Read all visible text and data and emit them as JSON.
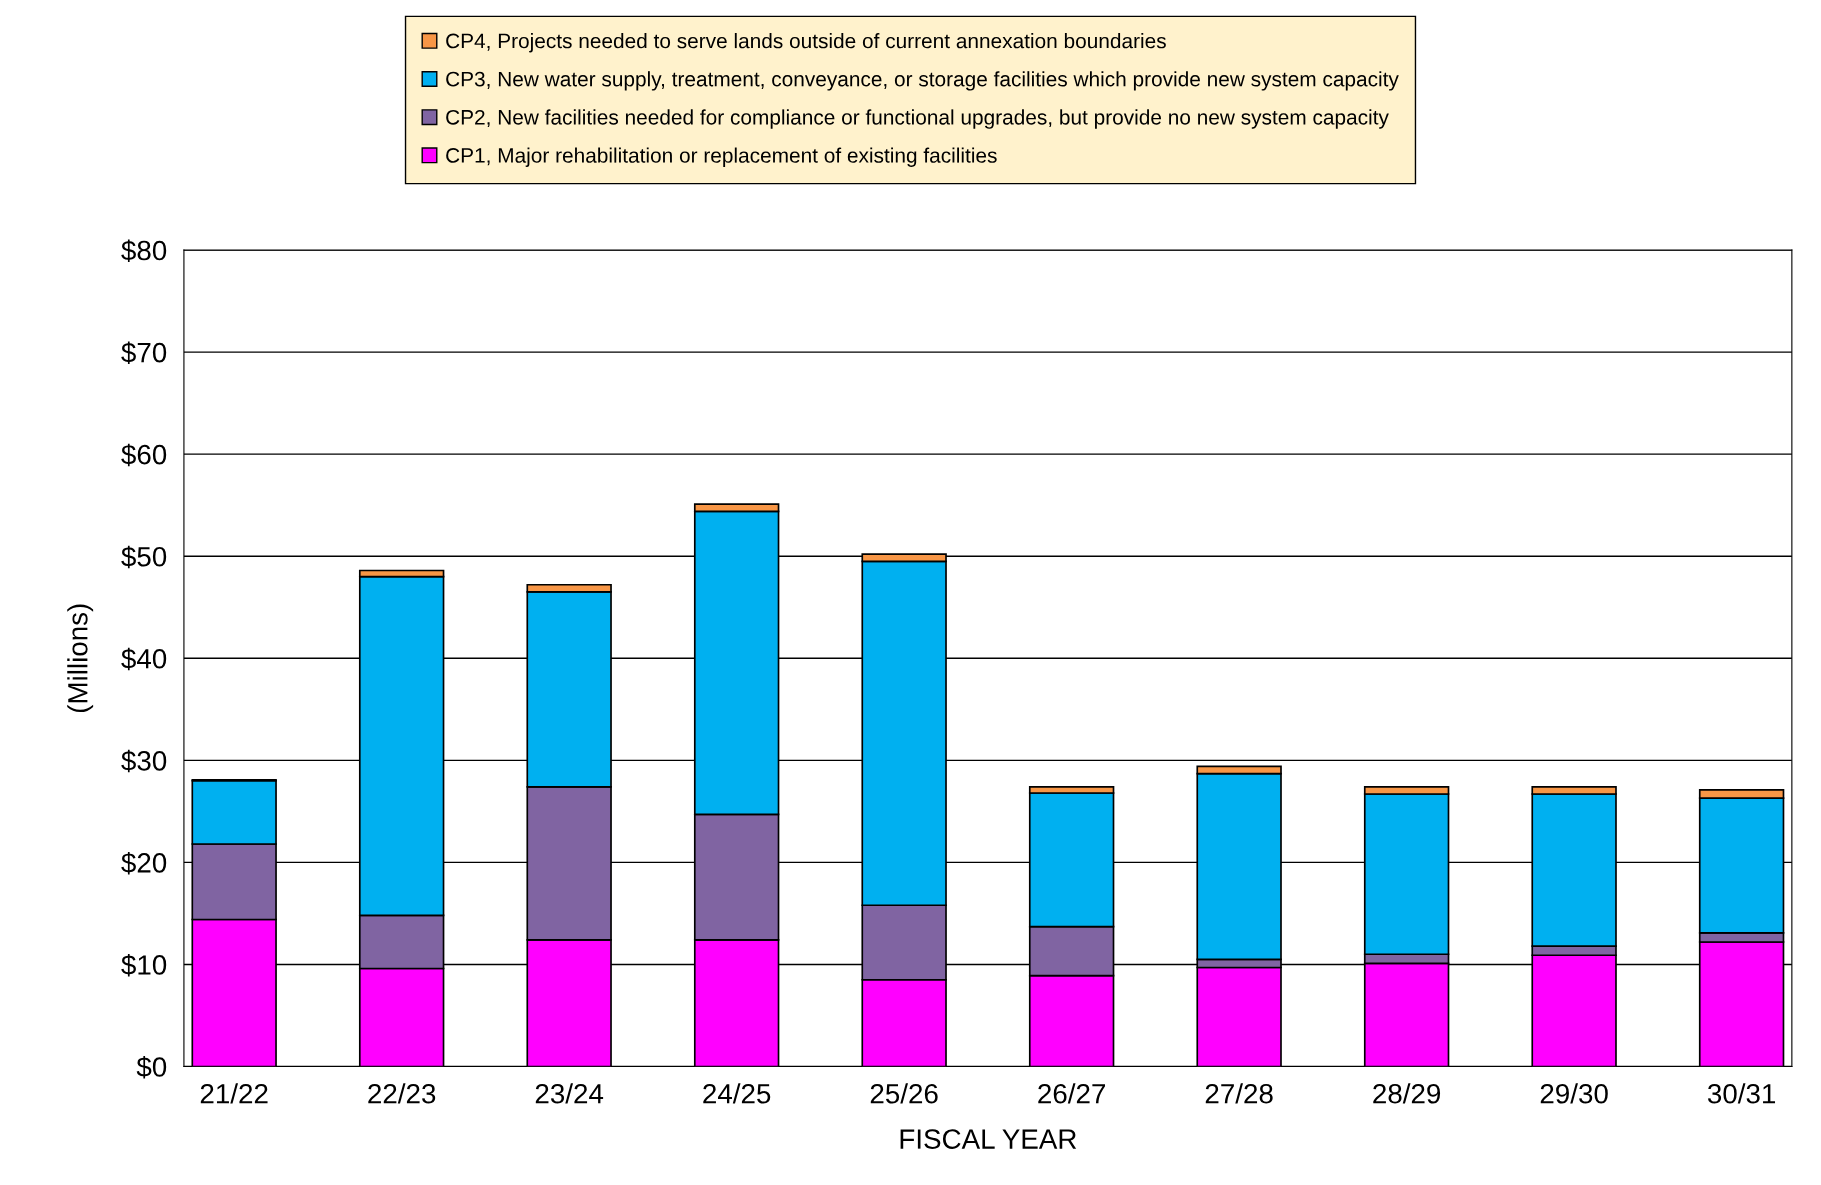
{
  "chart_data": {
    "type": "bar",
    "stacked": true,
    "xlabel": "FISCAL YEAR",
    "ylabel": "(Millions)",
    "categories": [
      "21/22",
      "22/23",
      "23/24",
      "24/25",
      "25/26",
      "26/27",
      "27/28",
      "28/29",
      "29/30",
      "30/31"
    ],
    "series": [
      {
        "name": "CP1, Major rehabilitation or replacement of existing facilities",
        "color": "#ff00ff",
        "values": [
          14.4,
          9.6,
          12.4,
          12.4,
          8.5,
          8.9,
          9.7,
          10.1,
          10.9,
          12.2
        ]
      },
      {
        "name": "CP2, New facilities needed for compliance or functional upgrades, but provide no new system capacity",
        "color": "#8064a2",
        "values": [
          7.4,
          5.2,
          15.0,
          12.3,
          7.3,
          4.8,
          0.8,
          0.9,
          0.9,
          0.9
        ]
      },
      {
        "name": "CP3, New water supply, treatment, conveyance, or storage facilities which provide new system capacity",
        "color": "#00b0f0",
        "values": [
          6.2,
          33.2,
          19.1,
          29.7,
          33.7,
          13.1,
          18.2,
          15.7,
          14.9,
          13.2
        ]
      },
      {
        "name": "CP4, Projects needed to serve lands outside of current annexation boundaries",
        "color": "#f79646",
        "values": [
          0.1,
          0.6,
          0.7,
          0.7,
          0.7,
          0.6,
          0.7,
          0.7,
          0.7,
          0.8
        ]
      }
    ],
    "ylim": [
      0,
      80
    ],
    "yticks": [
      {
        "value": 0,
        "label": "$0"
      },
      {
        "value": 10,
        "label": "$10"
      },
      {
        "value": 20,
        "label": "$20"
      },
      {
        "value": 30,
        "label": "$30"
      },
      {
        "value": 40,
        "label": "$40"
      },
      {
        "value": 50,
        "label": "$50"
      },
      {
        "value": 60,
        "label": "$60"
      },
      {
        "value": 70,
        "label": "$70"
      },
      {
        "value": 80,
        "label": "$80"
      }
    ],
    "grid": "y",
    "legend": "top"
  }
}
